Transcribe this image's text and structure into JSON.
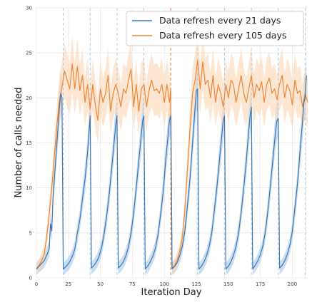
{
  "chart_data": {
    "type": "line",
    "title": "",
    "xlabel": "Iteration Day",
    "ylabel": "Number of calls needed",
    "xlim": [
      0,
      212
    ],
    "ylim": [
      0,
      30
    ],
    "xticks": [
      0,
      25,
      50,
      75,
      100,
      125,
      150,
      175,
      200
    ],
    "yticks": [
      0,
      5,
      10,
      15,
      20,
      25,
      30
    ],
    "grid": true,
    "legend_position": "top-right",
    "colors": {
      "series_21": "#3a76af",
      "series_105": "#ef8636",
      "band_21": "#9fc2e6",
      "band_105": "#fcd6b4",
      "grid": "#e8e8e8"
    },
    "refresh_lines_21": [
      21,
      42,
      63,
      84,
      105,
      126,
      147,
      168,
      189,
      210
    ],
    "refresh_lines_105": [
      105
    ],
    "series": [
      {
        "name": "Data refresh every 21 days",
        "x": [
          0,
          2,
          4,
          6,
          8,
          10,
          11,
          12,
          13,
          14,
          16,
          18,
          19,
          20,
          21,
          22,
          24,
          26,
          28,
          30,
          32,
          34,
          36,
          38,
          40,
          41,
          42,
          43,
          45,
          47,
          49,
          51,
          53,
          55,
          57,
          59,
          61,
          62,
          63,
          64,
          66,
          68,
          70,
          72,
          74,
          76,
          78,
          80,
          82,
          83,
          84,
          85,
          87,
          89,
          91,
          93,
          95,
          97,
          99,
          101,
          103,
          104,
          105,
          106,
          108,
          110,
          112,
          114,
          116,
          118,
          120,
          122,
          124,
          125,
          126,
          127,
          129,
          131,
          133,
          135,
          137,
          139,
          141,
          143,
          145,
          146,
          147,
          148,
          150,
          152,
          154,
          156,
          158,
          160,
          162,
          164,
          166,
          167,
          168,
          169,
          171,
          173,
          175,
          177,
          179,
          181,
          183,
          185,
          187,
          188,
          189,
          190,
          192,
          194,
          196,
          198,
          200,
          202,
          204,
          206,
          208,
          209,
          210,
          211
        ],
        "y": [
          1.0,
          1.3,
          1.6,
          1.9,
          2.5,
          3.2,
          6.0,
          5.2,
          9.0,
          11.0,
          15.0,
          19.0,
          20.5,
          20.0,
          1.0,
          1.1,
          1.4,
          1.8,
          2.4,
          3.2,
          5.0,
          6.5,
          8.8,
          11.0,
          14.0,
          16.0,
          18.0,
          1.1,
          1.4,
          1.8,
          2.4,
          3.4,
          5.0,
          7.0,
          9.5,
          12.5,
          15.5,
          17.0,
          18.0,
          1.1,
          1.4,
          1.8,
          2.5,
          3.5,
          5.0,
          7.2,
          10.0,
          13.0,
          16.0,
          17.5,
          18.0,
          1.0,
          1.3,
          1.8,
          2.4,
          3.3,
          4.8,
          7.0,
          9.5,
          13.0,
          16.0,
          17.5,
          18.0,
          1.0,
          1.3,
          1.7,
          2.5,
          3.5,
          5.2,
          8.0,
          11.0,
          15.0,
          19.0,
          20.8,
          21.0,
          1.0,
          1.3,
          1.8,
          2.5,
          3.5,
          5.0,
          7.5,
          10.0,
          13.0,
          16.0,
          17.5,
          18.0,
          1.0,
          1.3,
          1.8,
          2.5,
          3.5,
          5.0,
          7.3,
          10.0,
          13.0,
          16.5,
          18.0,
          19.0,
          1.0,
          1.4,
          1.9,
          2.6,
          3.6,
          5.2,
          7.6,
          10.5,
          13.5,
          16.5,
          17.5,
          17.7,
          1.1,
          1.4,
          1.9,
          2.6,
          3.6,
          5.2,
          7.8,
          10.5,
          14.0,
          17.5,
          19.5,
          20.0,
          22.5
        ]
      },
      {
        "name": "Data refresh every 105 days",
        "x": [
          0,
          2,
          4,
          6,
          8,
          10,
          12,
          14,
          16,
          18,
          20,
          22,
          24,
          26,
          28,
          30,
          32,
          34,
          36,
          38,
          40,
          42,
          44,
          46,
          48,
          50,
          52,
          54,
          56,
          58,
          60,
          62,
          64,
          66,
          68,
          70,
          72,
          74,
          76,
          78,
          80,
          82,
          84,
          86,
          88,
          90,
          92,
          94,
          96,
          98,
          100,
          102,
          104,
          105,
          106,
          108,
          110,
          112,
          114,
          116,
          118,
          120,
          122,
          124,
          126,
          128,
          130,
          132,
          134,
          136,
          138,
          140,
          142,
          144,
          146,
          148,
          150,
          152,
          154,
          156,
          158,
          160,
          162,
          164,
          166,
          168,
          170,
          172,
          174,
          176,
          178,
          180,
          182,
          184,
          186,
          188,
          190,
          192,
          194,
          196,
          198,
          200,
          202,
          204,
          206,
          208,
          210,
          212
        ],
        "y": [
          1.0,
          1.4,
          1.9,
          2.6,
          4.5,
          7.0,
          10.0,
          13.5,
          17.0,
          19.8,
          21.2,
          23.0,
          22.0,
          21.0,
          23.8,
          21.0,
          23.5,
          20.8,
          22.5,
          19.5,
          21.5,
          18.8,
          21.5,
          19.2,
          17.5,
          21.0,
          19.5,
          20.5,
          22.5,
          18.5,
          20.5,
          21.5,
          20.5,
          19.0,
          21.0,
          20.5,
          22.0,
          23.2,
          19.0,
          21.5,
          18.5,
          21.0,
          21.5,
          19.0,
          20.8,
          22.0,
          20.8,
          21.0,
          20.5,
          21.5,
          19.5,
          21.5,
          19.5,
          21.0,
          1.0,
          1.4,
          2.0,
          3.0,
          4.5,
          7.5,
          12.0,
          16.5,
          20.5,
          22.0,
          24.2,
          21.0,
          24.0,
          21.5,
          22.0,
          20.0,
          22.5,
          19.5,
          21.5,
          20.5,
          19.0,
          21.5,
          20.0,
          22.0,
          21.5,
          19.5,
          21.0,
          22.5,
          20.5,
          19.5,
          21.0,
          22.5,
          20.0,
          21.5,
          20.8,
          21.8,
          19.5,
          21.5,
          22.2,
          20.5,
          21.0,
          19.8,
          21.5,
          22.5,
          20.0,
          21.5,
          20.8,
          19.2,
          22.0,
          20.5,
          20.8,
          19.0,
          20.5,
          19.5
        ]
      }
    ],
    "bands": [
      {
        "series": "Data refresh every 21 days",
        "half_width": [
          0.6,
          2.5
        ]
      },
      {
        "series": "Data refresh every 105 days",
        "half_width": [
          0.6,
          3.2
        ]
      }
    ]
  }
}
